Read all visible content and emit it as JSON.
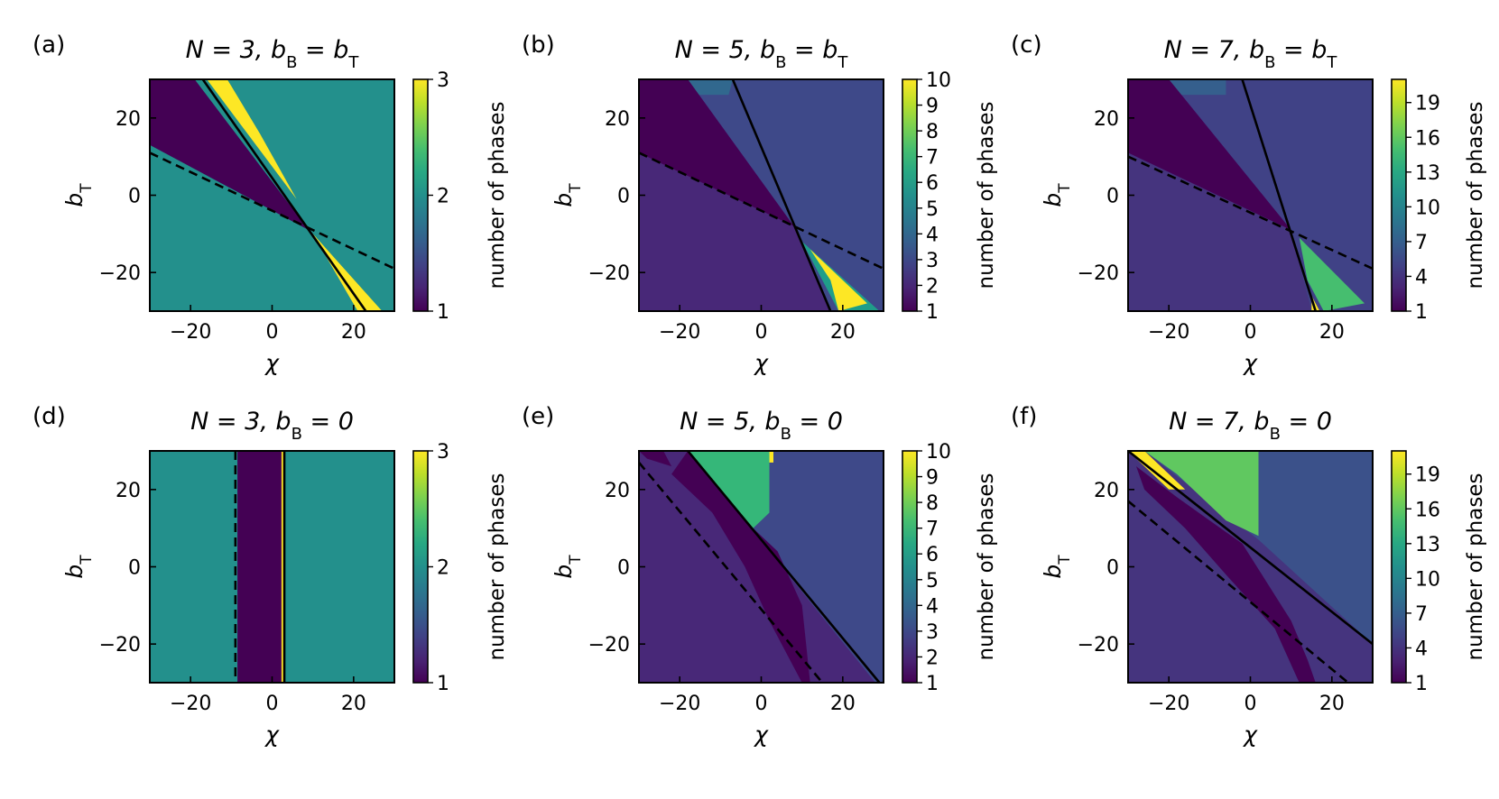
{
  "chart_data": [
    {
      "id": "a",
      "type": "heatmap",
      "panel_label": "(a)",
      "title_parts": [
        "N = 3,  b",
        "B",
        " = b",
        "T"
      ],
      "x_min": -30,
      "x_max": 30,
      "y_min": -30,
      "y_max": 30,
      "xlabel": "χ",
      "ylabel_parts": [
        "b",
        "T"
      ],
      "xticks": [
        -20,
        0,
        20
      ],
      "yticks": [
        -20,
        0,
        20
      ],
      "colorbar": {
        "label": "number of phases",
        "min": 1,
        "max": 3,
        "ticks": [
          1,
          2,
          3
        ]
      },
      "regions": [
        {
          "value": 2,
          "vertices": [
            [
              -30,
              30
            ],
            [
              30,
              30
            ],
            [
              30,
              -30
            ],
            [
              -30,
              -30
            ]
          ]
        },
        {
          "value": 1,
          "vertices": [
            [
              -30,
              30
            ],
            [
              -19,
              30
            ],
            [
              9,
              -9
            ],
            [
              -30,
              13
            ]
          ]
        },
        {
          "value": 3,
          "vertices": [
            [
              -16,
              30
            ],
            [
              -11,
              30
            ],
            [
              -3,
              16
            ],
            [
              6,
              -1
            ]
          ]
        },
        {
          "value": 3,
          "vertices": [
            [
              10,
              -10
            ],
            [
              27,
              -30
            ],
            [
              21,
              -30
            ]
          ]
        }
      ],
      "lines": [
        {
          "style": "solid",
          "x1": -17,
          "y1": 30,
          "x2": 23,
          "y2": -30
        },
        {
          "style": "dashed",
          "x1": -30,
          "y1": 11,
          "x2": 30,
          "y2": -19
        }
      ]
    },
    {
      "id": "b",
      "type": "heatmap",
      "panel_label": "(b)",
      "title_parts": [
        "N = 5,  b",
        "B",
        " = b",
        "T"
      ],
      "x_min": -30,
      "x_max": 30,
      "y_min": -30,
      "y_max": 30,
      "xlabel": "χ",
      "ylabel_parts": [
        "b",
        "T"
      ],
      "xticks": [
        -20,
        0,
        20
      ],
      "yticks": [
        -20,
        0,
        20
      ],
      "colorbar": {
        "label": "number of phases",
        "min": 1,
        "max": 10,
        "ticks": [
          1,
          2,
          3,
          4,
          5,
          6,
          7,
          8,
          9,
          10
        ]
      },
      "regions": [
        {
          "value": 2,
          "vertices": [
            [
              -30,
              30
            ],
            [
              30,
              30
            ],
            [
              30,
              -30
            ],
            [
              -30,
              -30
            ]
          ]
        },
        {
          "value": 3,
          "vertices": [
            [
              -18,
              30
            ],
            [
              30,
              30
            ],
            [
              30,
              -30
            ],
            [
              17,
              -30
            ],
            [
              8,
              -8
            ]
          ]
        },
        {
          "value": 4,
          "vertices": [
            [
              -18,
              30
            ],
            [
              -7,
              30
            ],
            [
              -8,
              26
            ],
            [
              -16,
              26
            ]
          ]
        },
        {
          "value": 1,
          "vertices": [
            [
              -30,
              30
            ],
            [
              -18,
              30
            ],
            [
              8,
              -8
            ],
            [
              -30,
              11
            ]
          ]
        },
        {
          "value": 6,
          "vertices": [
            [
              10,
              -12
            ],
            [
              29,
              -30
            ],
            [
              19,
              -30
            ]
          ]
        },
        {
          "value": 10,
          "vertices": [
            [
              12,
              -14
            ],
            [
              26,
              -28
            ],
            [
              19,
              -30
            ],
            [
              17,
              -22
            ]
          ]
        }
      ],
      "lines": [
        {
          "style": "solid",
          "x1": -7,
          "y1": 30,
          "x2": 17,
          "y2": -30
        },
        {
          "style": "dashed",
          "x1": -30,
          "y1": 11,
          "x2": 30,
          "y2": -19
        }
      ]
    },
    {
      "id": "c",
      "type": "heatmap",
      "panel_label": "(c)",
      "title_parts": [
        "N = 7,  b",
        "B",
        " = b",
        "T"
      ],
      "x_min": -30,
      "x_max": 30,
      "y_min": -30,
      "y_max": 30,
      "xlabel": "χ",
      "ylabel_parts": [
        "b",
        "T"
      ],
      "xticks": [
        -20,
        0,
        20
      ],
      "yticks": [
        -20,
        0,
        20
      ],
      "colorbar": {
        "label": "number of phases",
        "min": 1,
        "max": 21,
        "ticks": [
          1,
          4,
          7,
          10,
          13,
          16,
          19
        ]
      },
      "regions": [
        {
          "value": 4,
          "vertices": [
            [
              -30,
              30
            ],
            [
              30,
              30
            ],
            [
              30,
              -30
            ],
            [
              -30,
              -30
            ]
          ]
        },
        {
          "value": 5,
          "vertices": [
            [
              -20,
              30
            ],
            [
              30,
              30
            ],
            [
              30,
              -30
            ],
            [
              15,
              -30
            ],
            [
              10,
              -9
            ]
          ]
        },
        {
          "value": 7,
          "vertices": [
            [
              -20,
              30
            ],
            [
              -6,
              30
            ],
            [
              -6,
              26
            ],
            [
              -18,
              26
            ]
          ]
        },
        {
          "value": 1,
          "vertices": [
            [
              -30,
              30
            ],
            [
              -20,
              30
            ],
            [
              10,
              -9
            ],
            [
              -30,
              11
            ]
          ]
        },
        {
          "value": 15,
          "vertices": [
            [
              12,
              -11
            ],
            [
              28,
              -28
            ],
            [
              18,
              -30
            ],
            [
              14,
              -22
            ]
          ]
        },
        {
          "value": 21,
          "vertices": [
            [
              15,
              -26
            ],
            [
              17,
              -30
            ],
            [
              15,
              -30
            ]
          ]
        }
      ],
      "lines": [
        {
          "style": "solid",
          "x1": -2,
          "y1": 30,
          "x2": 16,
          "y2": -30
        },
        {
          "style": "dashed",
          "x1": -30,
          "y1": 10,
          "x2": 30,
          "y2": -19
        }
      ]
    },
    {
      "id": "d",
      "type": "heatmap",
      "panel_label": "(d)",
      "title_parts": [
        "N = 3,  b",
        "B",
        " = 0",
        ""
      ],
      "x_min": -30,
      "x_max": 30,
      "y_min": -30,
      "y_max": 30,
      "xlabel": "χ",
      "ylabel_parts": [
        "b",
        "T"
      ],
      "xticks": [
        -20,
        0,
        20
      ],
      "yticks": [
        -20,
        0,
        20
      ],
      "colorbar": {
        "label": "number of phases",
        "min": 1,
        "max": 3,
        "ticks": [
          1,
          2,
          3
        ]
      },
      "regions": [
        {
          "value": 2,
          "vertices": [
            [
              -30,
              30
            ],
            [
              30,
              30
            ],
            [
              30,
              -30
            ],
            [
              -30,
              -30
            ]
          ]
        },
        {
          "value": 1,
          "vertices": [
            [
              -8.5,
              30
            ],
            [
              2.5,
              30
            ],
            [
              2.5,
              -30
            ],
            [
              -8.5,
              -30
            ]
          ]
        },
        {
          "value": 3,
          "vertices": [
            [
              2.3,
              30
            ],
            [
              3.2,
              30
            ],
            [
              3.2,
              -30
            ],
            [
              2.3,
              -30
            ]
          ]
        }
      ],
      "lines": [
        {
          "style": "solid",
          "x1": 3,
          "y1": 30,
          "x2": 3,
          "y2": -30
        },
        {
          "style": "dashed",
          "x1": -9,
          "y1": 30,
          "x2": -9,
          "y2": -30
        }
      ]
    },
    {
      "id": "e",
      "type": "heatmap",
      "panel_label": "(e)",
      "title_parts": [
        "N = 5,  b",
        "B",
        " = 0",
        ""
      ],
      "x_min": -30,
      "x_max": 30,
      "y_min": -30,
      "y_max": 30,
      "xlabel": "χ",
      "ylabel_parts": [
        "b",
        "T"
      ],
      "xticks": [
        -20,
        0,
        20
      ],
      "yticks": [
        -20,
        0,
        20
      ],
      "colorbar": {
        "label": "number of phases",
        "min": 1,
        "max": 10,
        "ticks": [
          1,
          2,
          3,
          4,
          5,
          6,
          7,
          8,
          9,
          10
        ]
      },
      "regions": [
        {
          "value": 2,
          "vertices": [
            [
              -30,
              30
            ],
            [
              30,
              30
            ],
            [
              30,
              -30
            ],
            [
              -30,
              -30
            ]
          ]
        },
        {
          "value": 3,
          "vertices": [
            [
              -18,
              30
            ],
            [
              30,
              30
            ],
            [
              30,
              -30
            ],
            [
              28,
              -30
            ],
            [
              2,
              4
            ]
          ]
        },
        {
          "value": 7,
          "vertices": [
            [
              -18,
              30
            ],
            [
              2,
              30
            ],
            [
              2,
              14
            ],
            [
              -2,
              10
            ],
            [
              -6,
              14
            ]
          ]
        },
        {
          "value": 10,
          "vertices": [
            [
              2,
              30
            ],
            [
              3,
              30
            ],
            [
              3,
              27
            ],
            [
              2,
              27
            ]
          ]
        },
        {
          "value": 1,
          "vertices": [
            [
              -18,
              30
            ],
            [
              -22,
              24
            ],
            [
              -12,
              14
            ],
            [
              -4,
              0
            ],
            [
              2,
              -14
            ],
            [
              8,
              -26
            ],
            [
              10,
              -30
            ],
            [
              12,
              -30
            ],
            [
              10,
              -10
            ],
            [
              4,
              4
            ],
            [
              -2,
              10
            ]
          ]
        },
        {
          "value": 1,
          "vertices": [
            [
              -30,
              30
            ],
            [
              -24,
              30
            ],
            [
              -22,
              26
            ],
            [
              -28,
              28
            ]
          ]
        }
      ],
      "lines": [
        {
          "style": "solid",
          "x1": -18,
          "y1": 30,
          "x2": 29,
          "y2": -30
        },
        {
          "style": "dashed",
          "x1": -30,
          "y1": 27,
          "x2": 15,
          "y2": -30
        }
      ]
    },
    {
      "id": "f",
      "type": "heatmap",
      "panel_label": "(f)",
      "title_parts": [
        "N = 7,  b",
        "B",
        " = 0",
        ""
      ],
      "x_min": -30,
      "x_max": 30,
      "y_min": -30,
      "y_max": 30,
      "xlabel": "χ",
      "ylabel_parts": [
        "b",
        "T"
      ],
      "xticks": [
        -20,
        0,
        20
      ],
      "yticks": [
        -20,
        0,
        20
      ],
      "colorbar": {
        "label": "number of phases",
        "min": 1,
        "max": 21,
        "ticks": [
          1,
          4,
          7,
          10,
          13,
          16,
          19
        ]
      },
      "regions": [
        {
          "value": 4,
          "vertices": [
            [
              -30,
              30
            ],
            [
              30,
              30
            ],
            [
              30,
              -30
            ],
            [
              -30,
              -30
            ]
          ]
        },
        {
          "value": 6,
          "vertices": [
            [
              -26,
              30
            ],
            [
              30,
              30
            ],
            [
              30,
              -20
            ],
            [
              2,
              7
            ]
          ]
        },
        {
          "value": 16,
          "vertices": [
            [
              -26,
              30
            ],
            [
              2,
              30
            ],
            [
              2,
              8
            ],
            [
              -6,
              12
            ],
            [
              -18,
              24
            ]
          ]
        },
        {
          "value": 21,
          "vertices": [
            [
              -30,
              30
            ],
            [
              -26,
              30
            ],
            [
              -18,
              22
            ],
            [
              -16,
              20
            ],
            [
              -20,
              20
            ],
            [
              -28,
              28
            ]
          ]
        },
        {
          "value": 1,
          "vertices": [
            [
              -28,
              26
            ],
            [
              -18,
              18
            ],
            [
              -10,
              12
            ],
            [
              -2,
              6
            ],
            [
              4,
              -4
            ],
            [
              10,
              -14
            ],
            [
              14,
              -24
            ],
            [
              16,
              -30
            ],
            [
              12,
              -30
            ],
            [
              6,
              -16
            ],
            [
              -6,
              -2
            ],
            [
              -16,
              10
            ],
            [
              -26,
              20
            ]
          ]
        }
      ],
      "lines": [
        {
          "style": "solid",
          "x1": -30,
          "y1": 30,
          "x2": 30,
          "y2": -20
        },
        {
          "style": "dashed",
          "x1": -30,
          "y1": 17,
          "x2": 24,
          "y2": -30
        }
      ]
    }
  ]
}
